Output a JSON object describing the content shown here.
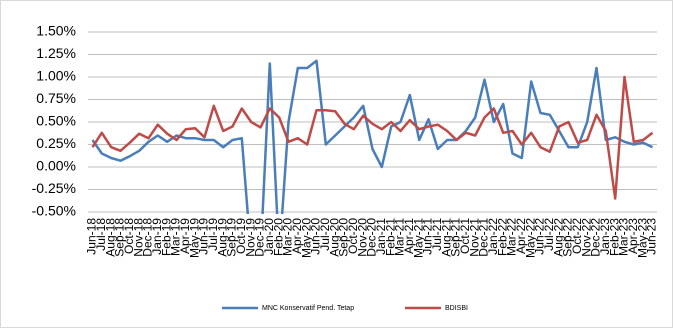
{
  "chart_data": {
    "type": "line",
    "categories": [
      "Jun-18",
      "Jul-18",
      "Aug-18",
      "Sep-18",
      "Oct-18",
      "Nov-18",
      "Dec-18",
      "Jan-19",
      "Feb-19",
      "Mar-19",
      "Apr-19",
      "May-19",
      "Jun-19",
      "Jul-19",
      "Aug-19",
      "Sep-19",
      "Oct-19",
      "Nov-19",
      "Dec-19",
      "Jan-20",
      "Feb-20",
      "Mar-20",
      "Apr-20",
      "May-20",
      "Jun-20",
      "Jul-20",
      "Aug-20",
      "Sep-20",
      "Oct-20",
      "Nov-20",
      "Dec-20",
      "Jan-21",
      "Feb-21",
      "Mar-21",
      "Apr-21",
      "May-21",
      "Jun-21",
      "Jul-21",
      "Aug-21",
      "Sep-21",
      "Oct-21",
      "Nov-21",
      "Dec-21",
      "Jan-22",
      "Feb-22",
      "Mar-22",
      "Apr-22",
      "May-22",
      "Jun-22",
      "Jul-22",
      "Aug-22",
      "Sep-22",
      "Oct-22",
      "Nov-22",
      "Dec-22",
      "Jan-23",
      "Feb-23",
      "Mar-23",
      "Apr-23",
      "May-23",
      "Jun-23"
    ],
    "series": [
      {
        "name": "MNC Konservatif Pend. Tetap",
        "color": "#4a7ebb",
        "values": [
          0.3,
          0.15,
          0.1,
          0.07,
          0.12,
          0.18,
          0.28,
          0.35,
          0.28,
          0.35,
          0.32,
          0.32,
          0.3,
          0.3,
          0.22,
          0.3,
          0.32,
          -1.0,
          -1.0,
          1.15,
          -1.0,
          0.5,
          1.1,
          1.1,
          1.18,
          0.25,
          0.35,
          0.45,
          0.55,
          0.68,
          0.2,
          0.0,
          0.45,
          0.5,
          0.8,
          0.3,
          0.53,
          0.2,
          0.3,
          0.3,
          0.4,
          0.55,
          0.97,
          0.5,
          0.7,
          0.15,
          0.1,
          0.95,
          0.6,
          0.58,
          0.4,
          0.22,
          0.22,
          0.5,
          1.1,
          0.3,
          0.33,
          0.28,
          0.25,
          0.27,
          0.22
        ]
      },
      {
        "name": "BDISBI",
        "color": "#be4b48",
        "values": [
          0.22,
          0.38,
          0.22,
          0.18,
          0.27,
          0.37,
          0.32,
          0.47,
          0.37,
          0.3,
          0.42,
          0.43,
          0.33,
          0.68,
          0.4,
          0.45,
          0.65,
          0.5,
          0.44,
          0.65,
          0.55,
          0.28,
          0.32,
          0.25,
          0.63,
          0.63,
          0.62,
          0.48,
          0.42,
          0.57,
          0.48,
          0.42,
          0.5,
          0.4,
          0.52,
          0.42,
          0.45,
          0.47,
          0.4,
          0.3,
          0.38,
          0.35,
          0.55,
          0.65,
          0.38,
          0.4,
          0.25,
          0.38,
          0.22,
          0.17,
          0.45,
          0.5,
          0.27,
          0.3,
          0.58,
          0.4,
          -0.35,
          1.0,
          0.28,
          0.3,
          0.38
        ]
      }
    ],
    "ylim": [
      -0.5,
      1.5
    ],
    "yticks": [
      {
        "value": -0.5,
        "label": "-0.50%"
      },
      {
        "value": -0.25,
        "label": "-0.25%"
      },
      {
        "value": 0,
        "label": "0.00%"
      },
      {
        "value": 0.25,
        "label": "0.25%"
      },
      {
        "value": 0.5,
        "label": "0.50%"
      },
      {
        "value": 0.75,
        "label": "0.75%"
      },
      {
        "value": 1.0,
        "label": "1.00%"
      },
      {
        "value": 1.25,
        "label": "1.25%"
      },
      {
        "value": 1.5,
        "label": "1.50%"
      }
    ],
    "grid": true,
    "legend": "bottom"
  }
}
